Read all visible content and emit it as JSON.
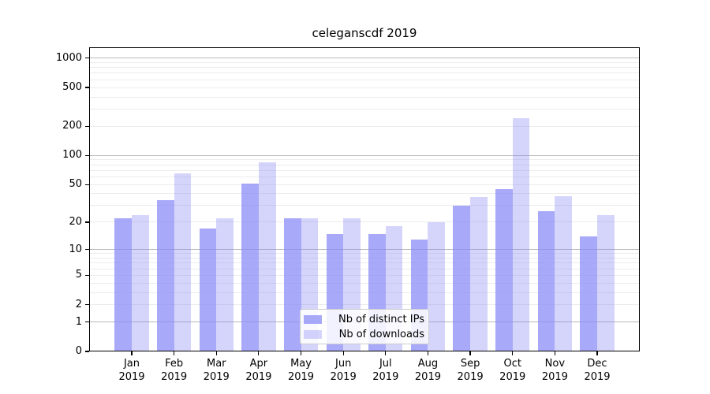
{
  "chart_data": {
    "type": "bar",
    "title": "celeganscdf 2019",
    "categories": [
      "Jan",
      "Feb",
      "Mar",
      "Apr",
      "May",
      "Jun",
      "Jul",
      "Aug",
      "Sep",
      "Oct",
      "Nov",
      "Dec"
    ],
    "x_year_label": "2019",
    "series": [
      {
        "name": "Nb of distinct IPs",
        "color": "#a8a8f8",
        "fill": "rgba(136,136,247,0.72)",
        "values": [
          22,
          34,
          17,
          51,
          22,
          15,
          15,
          13,
          30,
          45,
          26,
          14
        ]
      },
      {
        "name": "Nb of downloads",
        "color": "#d8d8fa",
        "fill": "rgba(136,136,247,0.35)",
        "values": [
          24,
          65,
          22,
          85,
          22,
          22,
          18,
          20,
          37,
          240,
          38,
          24
        ]
      }
    ],
    "yscale": "log1p",
    "ylim": [
      0,
      1290
    ],
    "yticks": [
      0,
      1,
      2,
      5,
      10,
      20,
      50,
      100,
      200,
      500,
      1000
    ],
    "major_grid_values": [
      1,
      10,
      100,
      1000
    ],
    "grid": true,
    "legend_position": "lower center",
    "xlabel": "",
    "ylabel": "",
    "colors": {
      "grid_minor": "#ececec",
      "grid_major": "#b9b9b9",
      "axis": "#000000",
      "text": "#000000"
    }
  }
}
